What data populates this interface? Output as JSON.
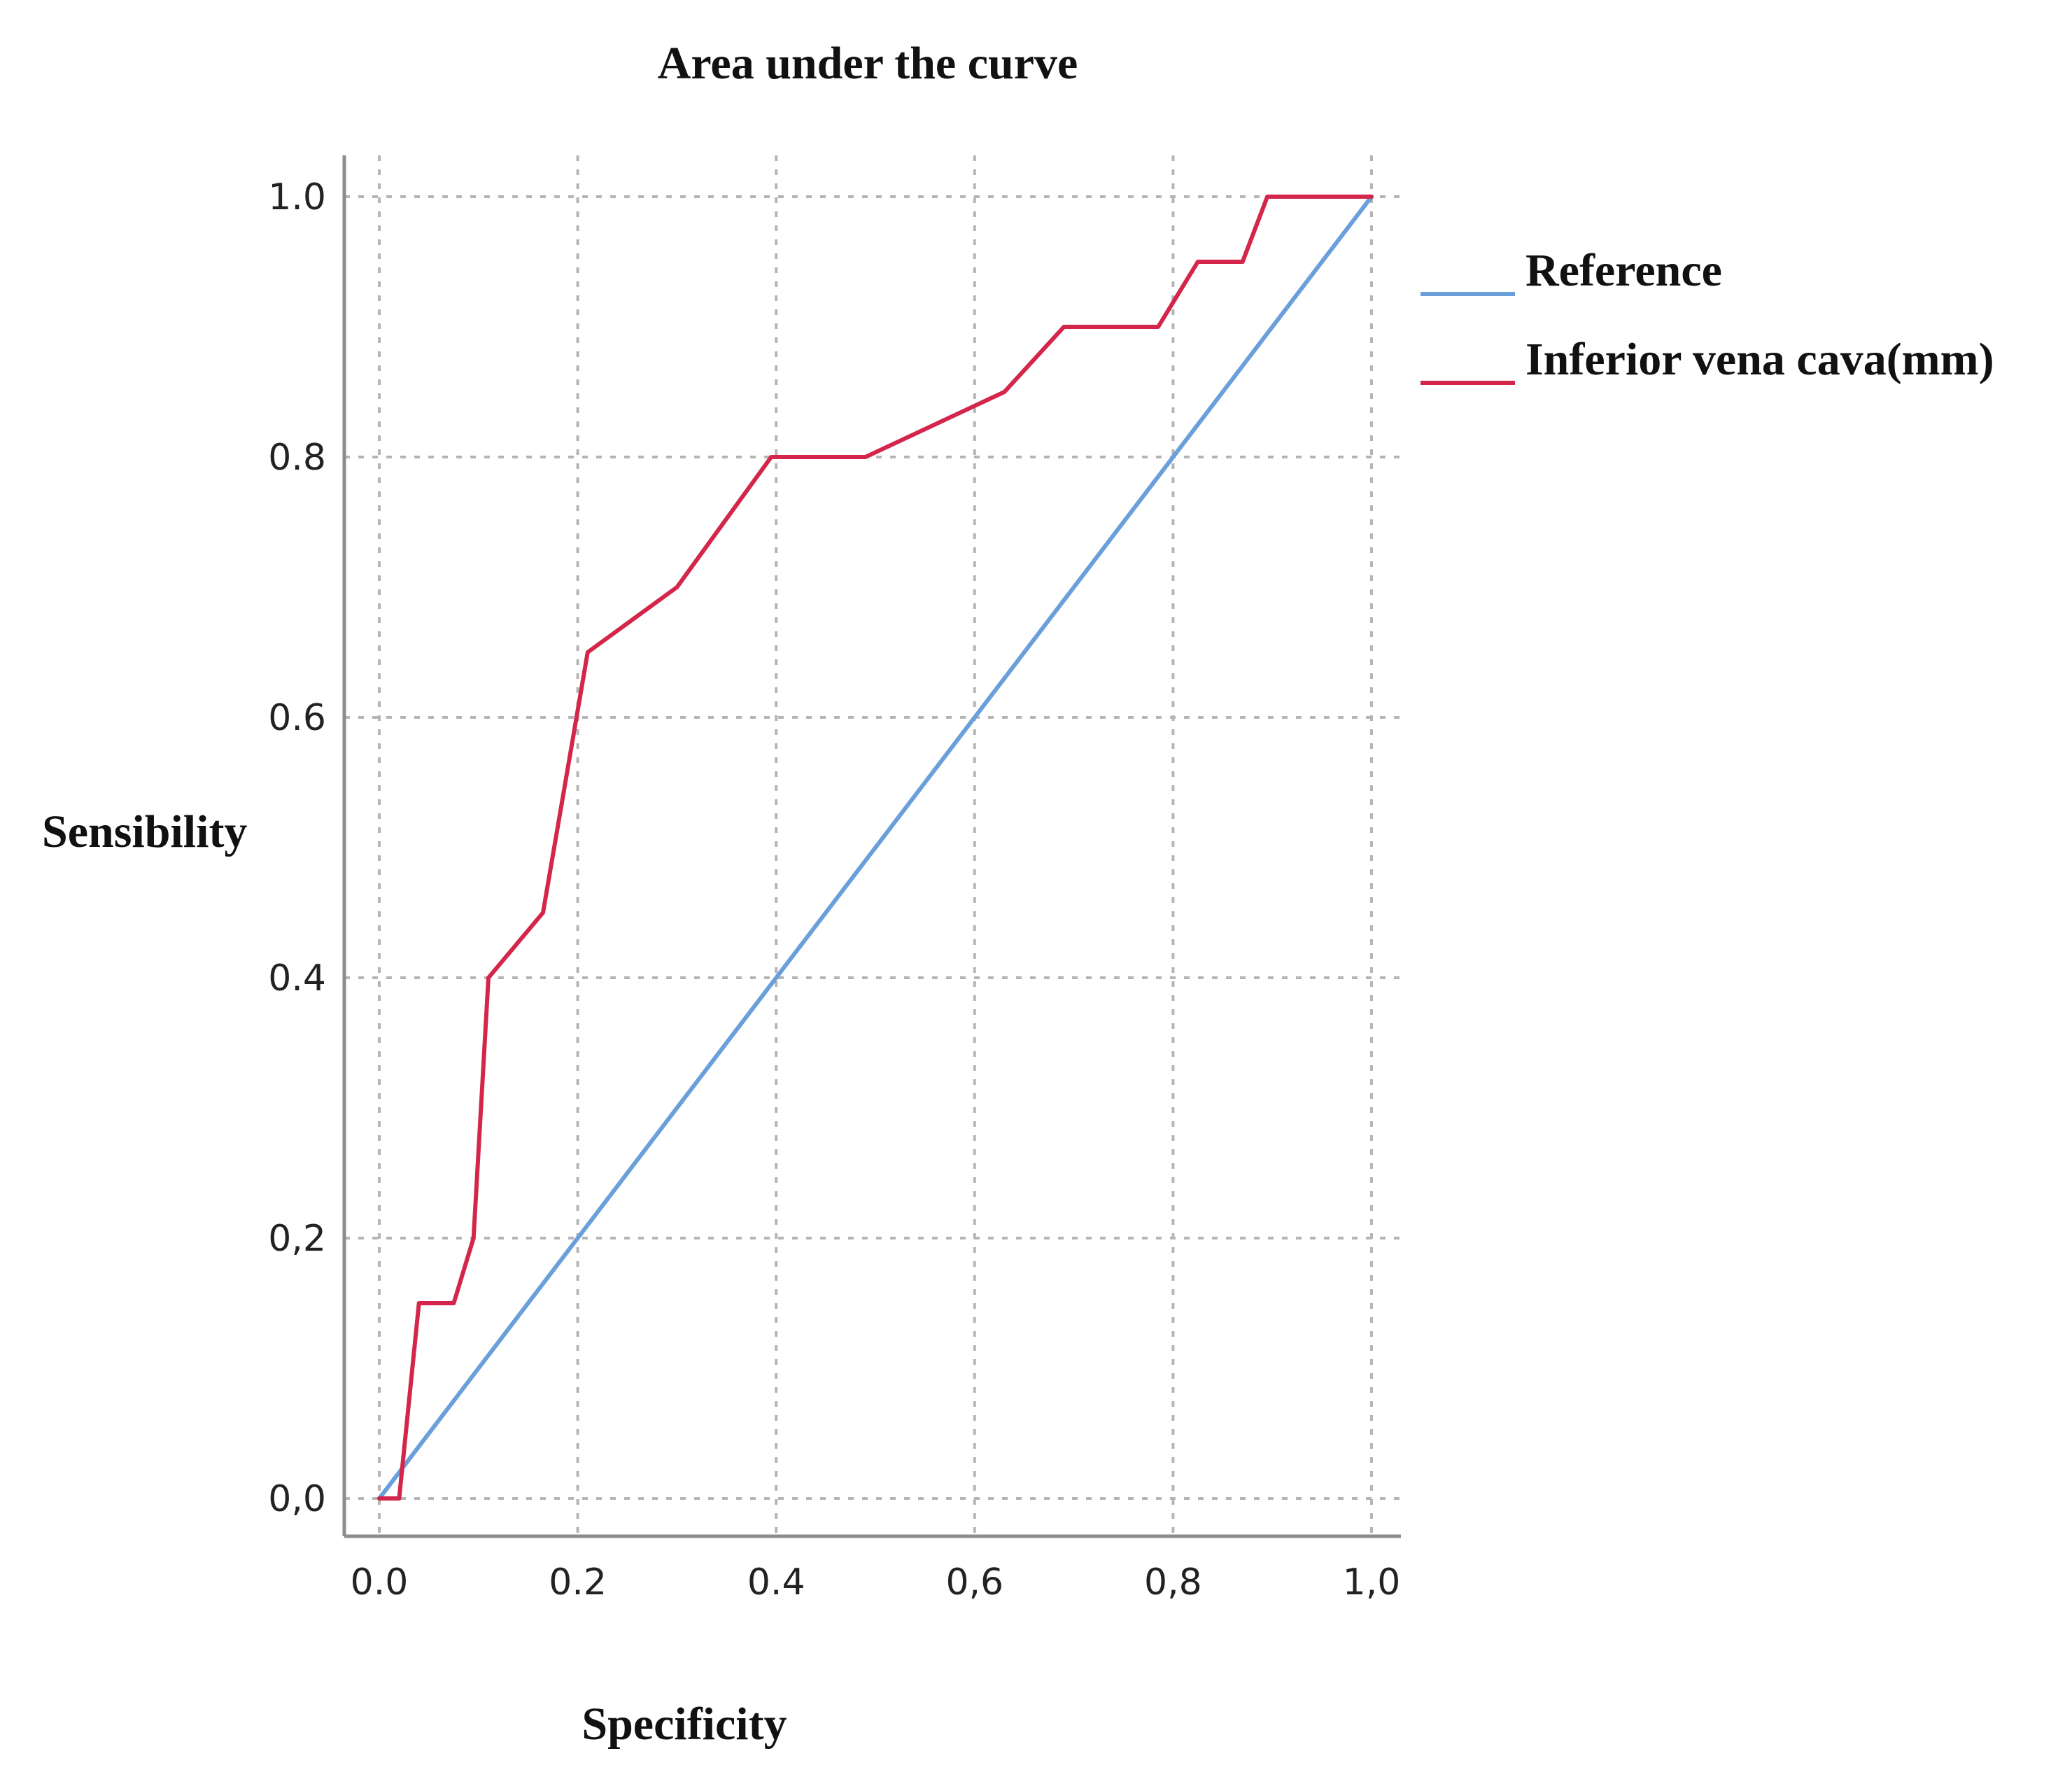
{
  "chart_data": {
    "type": "line",
    "title": "Area under the curve",
    "xlabel": "Specificity",
    "ylabel": "Sensibility",
    "xlim": [
      0,
      1
    ],
    "ylim": [
      0,
      1
    ],
    "x_ticks": [
      "0.0",
      "0.2",
      "0.4",
      "0,6",
      "0,8",
      "1,0"
    ],
    "y_ticks": [
      "0,0",
      "0,2",
      "0.4",
      "0.6",
      "0.8",
      "1.0"
    ],
    "grid": true,
    "legend_position": "right",
    "series": [
      {
        "name": "Reference",
        "color": "#6a9fdc",
        "x": [
          0,
          1
        ],
        "y": [
          0,
          1
        ]
      },
      {
        "name": "Inferior vena cava(mm)",
        "color": "#d3264a",
        "x": [
          0,
          0.02,
          0.04,
          0.075,
          0.095,
          0.11,
          0.165,
          0.21,
          0.3,
          0.395,
          0.49,
          0.63,
          0.69,
          0.785,
          0.825,
          0.87,
          0.895,
          1.0
        ],
        "y": [
          0,
          0,
          0.15,
          0.15,
          0.2,
          0.4,
          0.45,
          0.65,
          0.7,
          0.8,
          0.8,
          0.85,
          0.9,
          0.9,
          0.95,
          0.95,
          1.0,
          1.0
        ]
      }
    ]
  }
}
